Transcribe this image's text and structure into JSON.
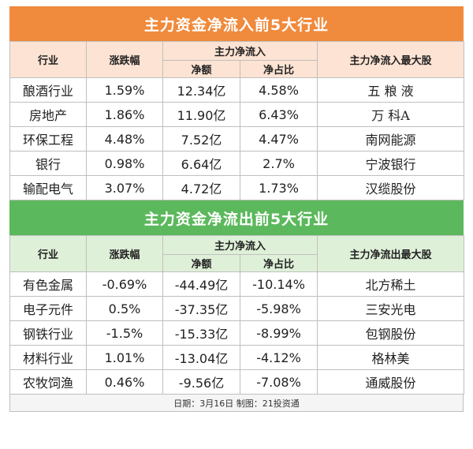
{
  "inflow": {
    "title": "主力资金净流入前5大行业",
    "headers": {
      "industry": "行业",
      "change": "涨跌幅",
      "main_funds": "主力净流入",
      "amount": "净额",
      "ratio": "净占比",
      "top_stock": "主力净流入最大股"
    },
    "rows": [
      {
        "industry": "酿酒行业",
        "change": "1.59%",
        "amount": "12.34亿",
        "ratio": "4.58%",
        "stock": "五 粮 液"
      },
      {
        "industry": "房地产",
        "change": "1.86%",
        "amount": "11.90亿",
        "ratio": "6.43%",
        "stock": "万  科A"
      },
      {
        "industry": "环保工程",
        "change": "4.48%",
        "amount": "7.52亿",
        "ratio": "4.47%",
        "stock": "南网能源"
      },
      {
        "industry": "银行",
        "change": "0.98%",
        "amount": "6.64亿",
        "ratio": "2.7%",
        "stock": "宁波银行"
      },
      {
        "industry": "输配电气",
        "change": "3.07%",
        "amount": "4.72亿",
        "ratio": "1.73%",
        "stock": "汉缆股份"
      }
    ]
  },
  "outflow": {
    "title": "主力资金净流出前5大行业",
    "headers": {
      "industry": "行业",
      "change": "涨跌幅",
      "main_funds": "主力净流入",
      "amount": "净额",
      "ratio": "净占比",
      "top_stock": "主力净流出最大股"
    },
    "rows": [
      {
        "industry": "有色金属",
        "change": "-0.69%",
        "amount": "-44.49亿",
        "ratio": "-10.14%",
        "stock": "北方稀土"
      },
      {
        "industry": "电子元件",
        "change": "0.5%",
        "amount": "-37.35亿",
        "ratio": "-5.98%",
        "stock": "三安光电"
      },
      {
        "industry": "钢铁行业",
        "change": "-1.5%",
        "amount": "-15.33亿",
        "ratio": "-8.99%",
        "stock": "包钢股份"
      },
      {
        "industry": "材料行业",
        "change": "1.01%",
        "amount": "-13.04亿",
        "ratio": "-4.12%",
        "stock": "格林美"
      },
      {
        "industry": "农牧饲渔",
        "change": "0.46%",
        "amount": "-9.56亿",
        "ratio": "-7.08%",
        "stock": "通威股份"
      }
    ]
  },
  "footer": "日期：3月16日 制图：21投资通",
  "colors": {
    "orange": "#f08a3c",
    "green": "#5cb85c"
  }
}
